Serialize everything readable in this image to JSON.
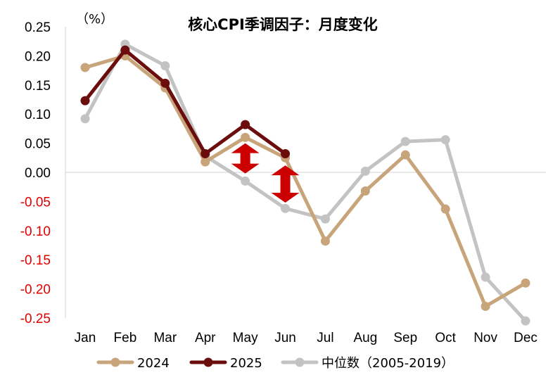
{
  "chart_data": {
    "type": "line",
    "title": "核心CPI季调因子：月度变化",
    "unit_label": "（%）",
    "categories": [
      "Jan",
      "Feb",
      "Mar",
      "Apr",
      "May",
      "Jun",
      "Jul",
      "Aug",
      "Sep",
      "Oct",
      "Nov",
      "Dec"
    ],
    "ylim": [
      -0.25,
      0.25
    ],
    "yticks": [
      0.25,
      0.2,
      0.15,
      0.1,
      0.05,
      0.0,
      -0.05,
      -0.1,
      -0.15,
      -0.2,
      -0.25
    ],
    "ytick_labels": [
      "0.25",
      "0.20",
      "0.15",
      "0.10",
      "0.05",
      "0.00",
      "-0.05",
      "-0.10",
      "-0.15",
      "-0.20",
      "-0.25"
    ],
    "positive_tick_color": "#000000",
    "negative_tick_color": "#e00000",
    "grid": false,
    "legend_position": "bottom",
    "series": [
      {
        "name": "2024",
        "color": "#c8a47a",
        "values": [
          0.18,
          0.2,
          0.145,
          0.018,
          0.06,
          0.025,
          -0.118,
          -0.032,
          0.03,
          -0.063,
          -0.23,
          -0.19
        ]
      },
      {
        "name": "2025",
        "color": "#6b0d0d",
        "values": [
          0.123,
          0.21,
          0.153,
          0.032,
          0.082,
          0.032,
          null,
          null,
          null,
          null,
          null,
          null
        ]
      },
      {
        "name": "中位数（2005-2019）",
        "color": "#c3c3c3",
        "values": [
          0.092,
          0.22,
          0.183,
          0.028,
          -0.015,
          -0.062,
          -0.08,
          0.002,
          0.053,
          0.056,
          -0.18,
          -0.255
        ]
      }
    ],
    "annotations": [
      {
        "type": "double-arrow",
        "category": "May",
        "from": 0.05,
        "to": -0.002,
        "color": "#cc0000"
      },
      {
        "type": "double-arrow",
        "category": "Jun",
        "from": 0.012,
        "to": -0.052,
        "color": "#cc0000"
      }
    ]
  }
}
